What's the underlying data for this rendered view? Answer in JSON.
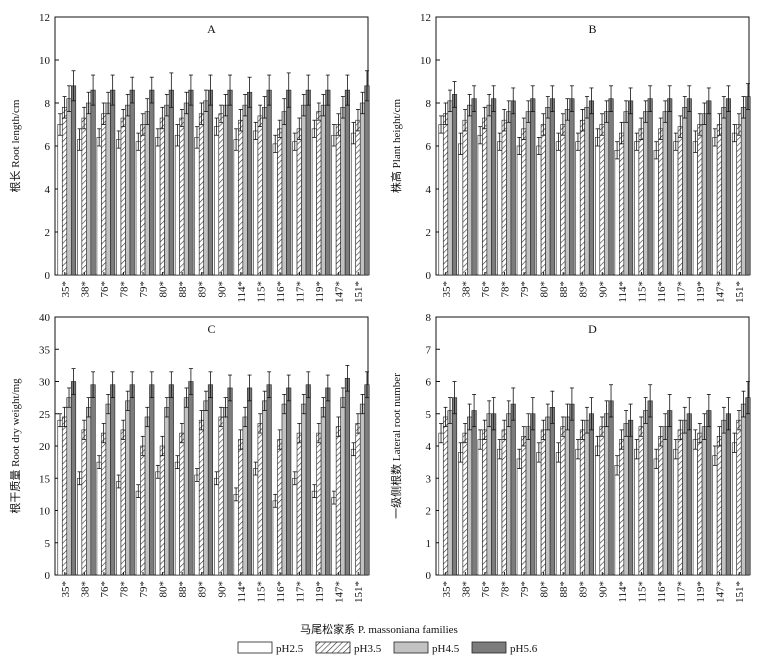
{
  "x_axis_title": "马尾松家系  P. massoniana families",
  "legend": [
    {
      "label": "pH2.5",
      "fill": "white"
    },
    {
      "label": "pH3.5",
      "fill": "hatch"
    },
    {
      "label": "pH4.5",
      "fill": "#c2c2c2"
    },
    {
      "label": "pH5.6",
      "fill": "#7c7c7c"
    }
  ],
  "chart_data": [
    {
      "type": "bar",
      "panel": "A",
      "ylabel": "根长  Root length/cm",
      "ylim": [
        0,
        12
      ],
      "yticks": [
        0,
        2,
        4,
        6,
        8,
        10,
        12
      ],
      "categories": [
        "35*",
        "38*",
        "76*",
        "78*",
        "79*",
        "80*",
        "88*",
        "89*",
        "90*",
        "114*",
        "115*",
        "116*",
        "117*",
        "119*",
        "147*",
        "151*"
      ],
      "series": [
        {
          "name": "pH2.5",
          "values": [
            7.0,
            6.3,
            6.4,
            6.3,
            6.2,
            6.4,
            6.5,
            6.4,
            6.9,
            6.3,
            6.7,
            6.1,
            6.2,
            6.8,
            6.5,
            6.6
          ],
          "errors": [
            0.5,
            0.5,
            0.4,
            0.4,
            0.4,
            0.4,
            0.5,
            0.5,
            0.4,
            0.5,
            0.4,
            0.4,
            0.4,
            0.4,
            0.5,
            0.5
          ]
        },
        {
          "name": "pH3.5",
          "values": [
            7.8,
            7.3,
            7.5,
            7.3,
            7.0,
            7.3,
            7.3,
            7.5,
            7.5,
            7.2,
            7.4,
            6.8,
            6.8,
            7.6,
            7.0,
            7.2
          ],
          "errors": [
            0.5,
            0.5,
            0.5,
            0.4,
            0.5,
            0.5,
            0.4,
            0.5,
            0.4,
            0.5,
            0.5,
            0.4,
            0.5,
            0.4,
            0.5,
            0.5
          ]
        },
        {
          "name": "pH4.5",
          "values": [
            8.2,
            8.0,
            8.0,
            7.9,
            7.6,
            7.9,
            8.0,
            8.1,
            7.9,
            7.9,
            7.8,
            7.6,
            7.9,
            7.9,
            7.8,
            8.0
          ],
          "errors": [
            0.6,
            0.5,
            0.5,
            0.5,
            0.6,
            0.5,
            0.5,
            0.5,
            0.5,
            0.5,
            0.5,
            0.6,
            0.5,
            0.5,
            0.5,
            0.5
          ]
        },
        {
          "name": "pH5.6",
          "values": [
            8.8,
            8.6,
            8.6,
            8.6,
            8.6,
            8.6,
            8.6,
            8.6,
            8.6,
            8.5,
            8.6,
            8.6,
            8.6,
            8.6,
            8.6,
            8.8
          ],
          "errors": [
            0.7,
            0.7,
            0.7,
            0.6,
            0.6,
            0.8,
            0.7,
            0.7,
            0.7,
            0.7,
            0.7,
            0.8,
            0.7,
            0.7,
            0.7,
            0.7
          ]
        }
      ]
    },
    {
      "type": "bar",
      "panel": "B",
      "ylabel": "株高  Plant height/cm",
      "ylim": [
        0,
        12
      ],
      "yticks": [
        0,
        2,
        4,
        6,
        8,
        10,
        12
      ],
      "categories": [
        "35*",
        "38*",
        "76*",
        "78*",
        "79*",
        "80*",
        "88*",
        "89*",
        "90*",
        "114*",
        "115*",
        "116*",
        "117*",
        "119*",
        "147*",
        "151*"
      ],
      "series": [
        {
          "name": "pH2.5",
          "values": [
            7.0,
            6.1,
            6.5,
            6.2,
            6.0,
            6.0,
            6.2,
            6.2,
            6.4,
            5.8,
            6.2,
            5.8,
            6.2,
            6.2,
            6.4,
            6.6
          ],
          "errors": [
            0.4,
            0.5,
            0.4,
            0.4,
            0.4,
            0.4,
            0.4,
            0.4,
            0.4,
            0.4,
            0.4,
            0.4,
            0.4,
            0.5,
            0.4,
            0.4
          ]
        },
        {
          "name": "pH3.5",
          "values": [
            7.5,
            7.2,
            7.3,
            7.2,
            6.8,
            7.0,
            7.0,
            7.2,
            7.0,
            6.6,
            6.8,
            6.8,
            6.9,
            7.0,
            7.0,
            7.0
          ],
          "errors": [
            0.5,
            0.5,
            0.5,
            0.5,
            0.5,
            0.5,
            0.5,
            0.5,
            0.5,
            0.5,
            0.5,
            0.5,
            0.5,
            0.5,
            0.5,
            0.5
          ]
        },
        {
          "name": "pH4.5",
          "values": [
            8.1,
            7.9,
            7.9,
            7.6,
            7.6,
            7.8,
            7.7,
            7.8,
            7.6,
            7.6,
            7.6,
            7.6,
            7.8,
            7.5,
            7.8,
            7.8
          ],
          "errors": [
            0.5,
            0.5,
            0.5,
            0.5,
            0.5,
            0.5,
            0.5,
            0.5,
            0.5,
            0.5,
            0.5,
            0.5,
            0.5,
            0.5,
            0.5,
            0.5
          ]
        },
        {
          "name": "pH5.6",
          "values": [
            8.4,
            8.2,
            8.2,
            8.1,
            8.2,
            8.2,
            8.2,
            8.1,
            8.2,
            8.1,
            8.2,
            8.2,
            8.2,
            8.1,
            8.2,
            8.3
          ],
          "errors": [
            0.6,
            0.6,
            0.6,
            0.6,
            0.6,
            0.6,
            0.6,
            0.6,
            0.6,
            0.6,
            0.6,
            0.6,
            0.6,
            0.6,
            0.6,
            0.6
          ]
        }
      ]
    },
    {
      "type": "bar",
      "panel": "C",
      "ylabel": "根干质量  Root dry weight/mg",
      "ylim": [
        0,
        40
      ],
      "yticks": [
        0,
        5,
        10,
        15,
        20,
        25,
        30,
        35,
        40
      ],
      "categories": [
        "35*",
        "38*",
        "76*",
        "78*",
        "79*",
        "80*",
        "88*",
        "89*",
        "90*",
        "114*",
        "115*",
        "116*",
        "117*",
        "119*",
        "147*",
        "151*"
      ],
      "series": [
        {
          "name": "pH2.5",
          "values": [
            24.0,
            15.0,
            17.5,
            14.5,
            13.0,
            16.0,
            17.5,
            15.5,
            15.0,
            12.5,
            16.5,
            11.5,
            15.0,
            13.0,
            12.0,
            19.5
          ],
          "errors": [
            1.0,
            1.0,
            1.0,
            1.0,
            1.0,
            1.0,
            1.0,
            1.0,
            1.0,
            1.0,
            1.0,
            1.0,
            1.0,
            1.0,
            1.0,
            1.0
          ]
        },
        {
          "name": "pH3.5",
          "values": [
            24.5,
            22.5,
            22.0,
            22.5,
            20.0,
            20.0,
            22.0,
            24.0,
            24.5,
            21.0,
            23.5,
            21.0,
            22.0,
            22.0,
            23.0,
            23.5
          ],
          "errors": [
            1.5,
            1.5,
            1.5,
            1.5,
            1.5,
            1.5,
            1.5,
            1.5,
            1.5,
            1.5,
            1.5,
            1.5,
            1.5,
            1.5,
            1.5,
            1.5
          ]
        },
        {
          "name": "pH4.5",
          "values": [
            27.5,
            26.0,
            26.5,
            27.0,
            24.5,
            26.0,
            27.5,
            27.0,
            26.0,
            24.5,
            27.0,
            26.5,
            26.5,
            26.0,
            27.5,
            26.5
          ],
          "errors": [
            1.5,
            1.5,
            1.5,
            1.5,
            1.5,
            1.5,
            1.5,
            1.5,
            1.5,
            1.5,
            1.5,
            1.5,
            1.5,
            1.5,
            1.5,
            1.5
          ]
        },
        {
          "name": "pH5.6",
          "values": [
            30.0,
            29.5,
            29.5,
            29.5,
            29.5,
            29.5,
            30.0,
            29.5,
            29.0,
            29.0,
            29.5,
            29.0,
            29.5,
            29.0,
            30.5,
            29.5
          ],
          "errors": [
            2.0,
            2.0,
            2.0,
            2.0,
            2.0,
            2.0,
            2.0,
            2.0,
            2.0,
            2.0,
            2.0,
            2.0,
            2.0,
            2.0,
            2.0,
            2.0
          ]
        }
      ]
    },
    {
      "type": "bar",
      "panel": "D",
      "ylabel": "一级侧根数  Lateral root number",
      "ylim": [
        0,
        8
      ],
      "yticks": [
        0,
        1,
        2,
        3,
        4,
        5,
        6,
        7,
        8
      ],
      "categories": [
        "35*",
        "38*",
        "76*",
        "78*",
        "79*",
        "80*",
        "88*",
        "89*",
        "90*",
        "114*",
        "115*",
        "116*",
        "117*",
        "119*",
        "147*",
        "151*"
      ],
      "series": [
        {
          "name": "pH2.5",
          "values": [
            4.4,
            3.8,
            4.2,
            3.9,
            3.6,
            3.8,
            3.8,
            3.9,
            4.0,
            3.4,
            3.9,
            3.6,
            3.9,
            4.2,
            3.7,
            4.1
          ],
          "errors": [
            0.3,
            0.3,
            0.3,
            0.3,
            0.3,
            0.3,
            0.3,
            0.3,
            0.3,
            0.3,
            0.3,
            0.3,
            0.3,
            0.3,
            0.3,
            0.3
          ]
        },
        {
          "name": "pH3.5",
          "values": [
            4.9,
            4.4,
            4.5,
            4.5,
            4.3,
            4.5,
            4.6,
            4.5,
            4.6,
            4.2,
            4.6,
            4.3,
            4.5,
            4.4,
            4.3,
            4.8
          ],
          "errors": [
            0.3,
            0.3,
            0.3,
            0.3,
            0.3,
            0.3,
            0.3,
            0.3,
            0.3,
            0.3,
            0.3,
            0.3,
            0.3,
            0.3,
            0.3,
            0.3
          ]
        },
        {
          "name": "pH4.5",
          "values": [
            5.1,
            4.9,
            5.0,
            5.0,
            4.6,
            4.9,
            4.9,
            4.8,
            5.0,
            4.7,
            5.1,
            4.6,
            4.8,
            4.6,
            4.8,
            5.3
          ],
          "errors": [
            0.4,
            0.4,
            0.4,
            0.4,
            0.4,
            0.4,
            0.4,
            0.4,
            0.4,
            0.4,
            0.4,
            0.4,
            0.4,
            0.4,
            0.4,
            0.4
          ]
        },
        {
          "name": "pH5.6",
          "values": [
            5.5,
            5.1,
            5.0,
            5.3,
            5.0,
            5.2,
            5.3,
            5.0,
            5.4,
            4.8,
            5.4,
            5.1,
            5.0,
            5.1,
            5.0,
            5.5
          ],
          "errors": [
            0.5,
            0.5,
            0.5,
            0.5,
            0.5,
            0.5,
            0.5,
            0.5,
            0.5,
            0.5,
            0.5,
            0.5,
            0.5,
            0.5,
            0.5,
            0.5
          ]
        }
      ]
    }
  ]
}
